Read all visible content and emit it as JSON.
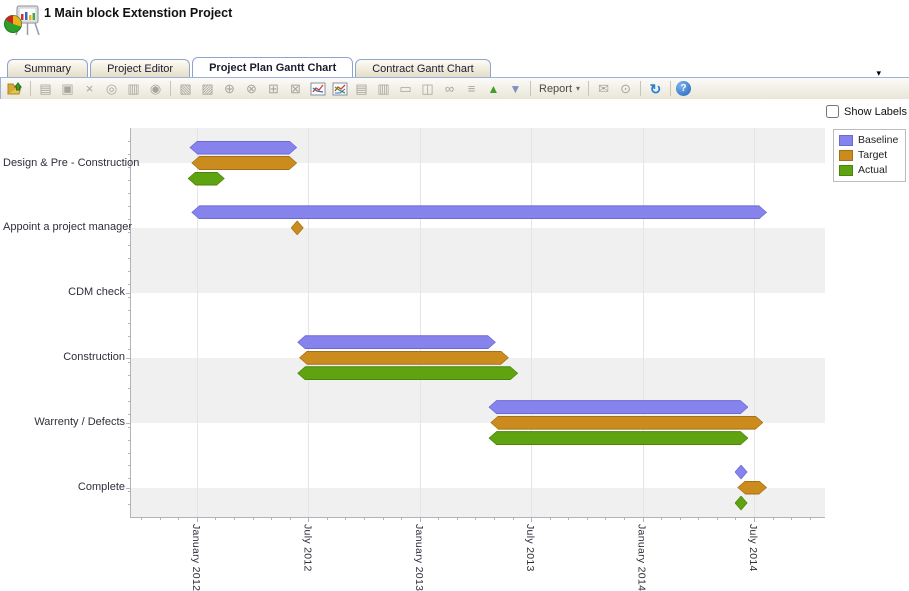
{
  "header": {
    "title": "1 Main block Extenstion Project"
  },
  "tabs": [
    {
      "label": "Summary",
      "active": false
    },
    {
      "label": "Project Editor",
      "active": false
    },
    {
      "label": "Project Plan Gantt Chart",
      "active": true
    },
    {
      "label": "Contract Gantt Chart",
      "active": false
    }
  ],
  "tab_overflow_caret": "▾",
  "toolbar": {
    "report": {
      "label": "Report",
      "caret": "▾"
    },
    "items": [
      {
        "name": "open-project-icon",
        "glyph": "folder-open",
        "style": "svg"
      },
      {
        "name": "toolbar-separator",
        "glyph": "",
        "style": "sep"
      },
      {
        "name": "new-document-icon",
        "glyph": "▤",
        "style": "disabled"
      },
      {
        "name": "save-icon",
        "glyph": "▣",
        "style": "disabled"
      },
      {
        "name": "delete-icon",
        "glyph": "×",
        "style": "disabled"
      },
      {
        "name": "zero-box-icon",
        "glyph": "◎",
        "style": "disabled"
      },
      {
        "name": "print-icon",
        "glyph": "▥",
        "style": "disabled"
      },
      {
        "name": "history-icon",
        "glyph": "◉",
        "style": "disabled"
      },
      {
        "name": "toolbar-separator",
        "glyph": "",
        "style": "sep"
      },
      {
        "name": "snapshot-icon",
        "glyph": "▧",
        "style": "disabled"
      },
      {
        "name": "copy-pages-icon",
        "glyph": "▨",
        "style": "disabled"
      },
      {
        "name": "settings-add-icon",
        "glyph": "⊕",
        "style": "disabled"
      },
      {
        "name": "settings-remove-icon",
        "glyph": "⊗",
        "style": "disabled"
      },
      {
        "name": "add-box-icon",
        "glyph": "⊞",
        "style": "disabled"
      },
      {
        "name": "remove-box-icon",
        "glyph": "⊠",
        "style": "disabled"
      },
      {
        "name": "gantt-chart-icon",
        "glyph": "chart-lines",
        "style": "svg"
      },
      {
        "name": "gantt-chart-alt-icon",
        "glyph": "chart-lines-2",
        "style": "svg"
      },
      {
        "name": "chart-save-icon",
        "glyph": "▤",
        "style": "disabled"
      },
      {
        "name": "chart-print-icon",
        "glyph": "▥",
        "style": "disabled"
      },
      {
        "name": "chart-monitor-icon",
        "glyph": "▭",
        "style": "disabled"
      },
      {
        "name": "briefcase-icon",
        "glyph": "◫",
        "style": "disabled"
      },
      {
        "name": "find-icon",
        "glyph": "∞",
        "style": "disabled"
      },
      {
        "name": "find-next-icon",
        "glyph": "≡",
        "style": "disabled"
      },
      {
        "name": "move-up-icon",
        "glyph": "▲",
        "style": "green"
      },
      {
        "name": "move-down-icon",
        "glyph": "▼",
        "style": "steel"
      },
      {
        "name": "toolbar-separator",
        "glyph": "",
        "style": "sep"
      },
      {
        "name": "report-dropdown",
        "glyph": "",
        "style": "report"
      },
      {
        "name": "toolbar-separator",
        "glyph": "",
        "style": "sep"
      },
      {
        "name": "send-mail-icon",
        "glyph": "✉",
        "style": "disabled"
      },
      {
        "name": "schedule-clock-icon",
        "glyph": "⊙",
        "style": "disabled"
      },
      {
        "name": "toolbar-separator",
        "glyph": "",
        "style": "sep"
      },
      {
        "name": "refresh-icon",
        "glyph": "↻",
        "style": "blue"
      },
      {
        "name": "toolbar-separator",
        "glyph": "",
        "style": "sep"
      },
      {
        "name": "help-icon",
        "glyph": "?",
        "style": "help"
      }
    ]
  },
  "controls": {
    "show_labels_label": "Show Labels",
    "show_labels_checked": false
  },
  "chart_data": {
    "type": "gantt-bar",
    "title": "",
    "units": "months offset from January 2012 (0 = January 2012 tick)",
    "series": [
      {
        "name": "Baseline",
        "fill": "#8684ec",
        "border": "#6b69d6"
      },
      {
        "name": "Target",
        "fill": "#cb8c1d",
        "border": "#a1701a"
      },
      {
        "name": "Actual",
        "fill": "#60a311",
        "border": "#4b850c"
      }
    ],
    "x_axis": {
      "ticks": [
        {
          "label": "January 2012",
          "month": 0
        },
        {
          "label": "July 2012",
          "month": 6
        },
        {
          "label": "January 2013",
          "month": 12
        },
        {
          "label": "July 2013",
          "month": 18
        },
        {
          "label": "January 2014",
          "month": 24
        },
        {
          "label": "July 2014",
          "month": 30
        }
      ],
      "minor_tick_every_months": 1
    },
    "rows": [
      {
        "task": "Design & Pre - Construction",
        "bars": [
          {
            "series": "Baseline",
            "start": -0.4,
            "end": 5.4
          },
          {
            "series": "Target",
            "start": -0.3,
            "end": 5.4
          },
          {
            "series": "Actual",
            "start": -0.5,
            "end": 1.5
          }
        ]
      },
      {
        "task": "Appoint a project manager",
        "bars": [
          {
            "series": "Baseline",
            "start": -0.3,
            "end": 30.7
          },
          {
            "series": "Target",
            "milestone": 5.4
          }
        ]
      },
      {
        "task": "CDM check",
        "bars": []
      },
      {
        "task": "Construction",
        "bars": [
          {
            "series": "Baseline",
            "start": 5.4,
            "end": 16.1
          },
          {
            "series": "Target",
            "start": 5.5,
            "end": 16.8
          },
          {
            "series": "Actual",
            "start": 5.4,
            "end": 17.3
          }
        ]
      },
      {
        "task": "Warrenty / Defects",
        "bars": [
          {
            "series": "Baseline",
            "start": 15.7,
            "end": 29.7
          },
          {
            "series": "Target",
            "start": 15.8,
            "end": 30.5
          },
          {
            "series": "Actual",
            "start": 15.7,
            "end": 29.7
          }
        ]
      },
      {
        "task": "Complete",
        "bars": [
          {
            "series": "Baseline",
            "milestone": 29.3
          },
          {
            "series": "Target",
            "start": 29.1,
            "end": 30.7
          },
          {
            "series": "Actual",
            "milestone": 29.3
          }
        ]
      }
    ],
    "layout": {
      "xlim_months": [
        -3.55,
        33.82
      ],
      "grid": "vertical-at-major-ticks",
      "row_stripes": "alternating, boundaries at row centers, first band gray",
      "legend_position": "top-right-outside",
      "stripe_color": "#f0f0f0"
    }
  }
}
